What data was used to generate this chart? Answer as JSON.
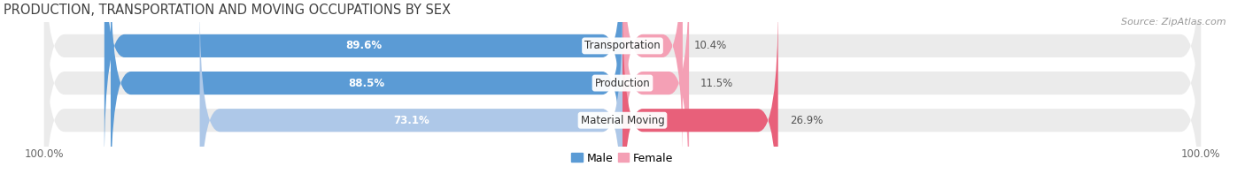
{
  "title": "PRODUCTION, TRANSPORTATION AND MOVING OCCUPATIONS BY SEX",
  "source": "Source: ZipAtlas.com",
  "categories": [
    "Transportation",
    "Production",
    "Material Moving"
  ],
  "male_values": [
    89.6,
    88.5,
    73.1
  ],
  "female_values": [
    10.4,
    11.5,
    26.9
  ],
  "male_color_dark": "#5b9bd5",
  "male_color_light": "#aec8e8",
  "female_color_light": "#f4a0b5",
  "female_color_dark": "#e8607a",
  "bar_bg_color": "#ebebeb",
  "title_fontsize": 10.5,
  "label_fontsize": 8.5,
  "tick_fontsize": 8.5,
  "source_fontsize": 8,
  "legend_fontsize": 9,
  "x_left_label": "100.0%",
  "x_right_label": "100.0%",
  "background_color": "#ffffff",
  "bar_height": 0.62,
  "bar_spacing": 1.0,
  "male_threshold": 80
}
